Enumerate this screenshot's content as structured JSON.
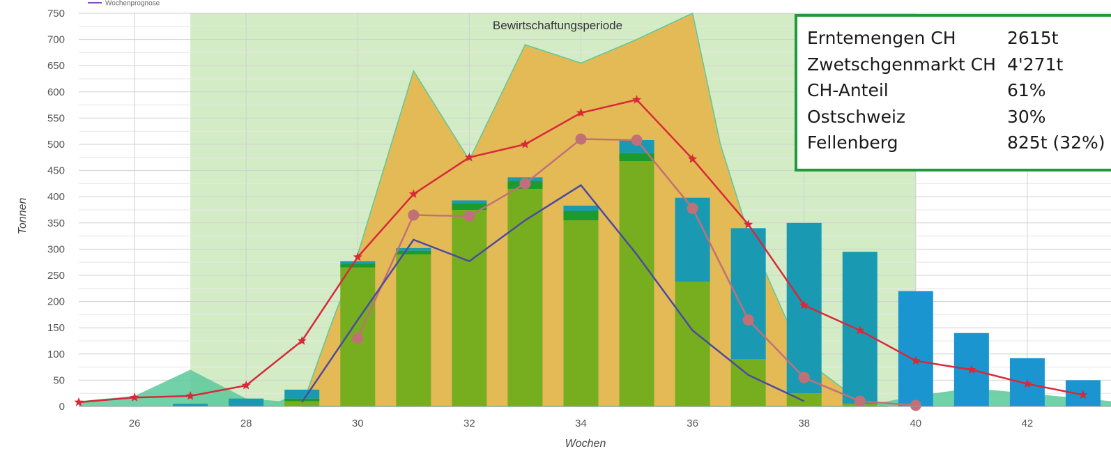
{
  "chart_data": {
    "type": "bar",
    "xlabel": "Wochen",
    "ylabel": "Tonnen",
    "xlim": [
      25,
      43.5
    ],
    "ylim": [
      0,
      750
    ],
    "x_ticks": [
      "26",
      "28",
      "30",
      "32",
      "34",
      "36",
      "38",
      "40",
      "42"
    ],
    "y_ticks": [
      "0",
      "50",
      "100",
      "150",
      "200",
      "250",
      "300",
      "350",
      "400",
      "450",
      "500",
      "550",
      "600",
      "650",
      "700",
      "750"
    ],
    "grid": true,
    "legend_entries": [
      {
        "name": "Wochenprognose",
        "color": "#9040c0"
      }
    ],
    "annotations": [
      {
        "text": "Bewirtschaftungsperiode",
        "x_start": 27,
        "x_end": 40
      }
    ],
    "colors": {
      "period": "#d3ecc6",
      "market_area": "#e3ba55",
      "early_area": "#5bc99a",
      "bar_green": "#77ae1f",
      "bar_dark": "#1d9a2c",
      "bar_teal": "#1a9ab2",
      "bar_blue": "#1a95d0",
      "red_line": "#d8283a",
      "pink_line": "#c27078",
      "navy_line": "#4c4aa0",
      "grid": "#d0d0d0"
    },
    "market_area": {
      "x": [
        29,
        29.5,
        30,
        31,
        32,
        33,
        34,
        35,
        36,
        36.5,
        37,
        38,
        39,
        39.5
      ],
      "y": [
        0,
        150,
        290,
        640,
        470,
        690,
        655,
        700,
        750,
        500,
        330,
        90,
        10,
        0
      ]
    },
    "early_area": {
      "x": [
        25,
        26,
        27,
        28,
        28.6,
        29,
        30,
        39,
        40,
        41,
        42,
        43,
        43.5
      ],
      "y": [
        10,
        20,
        70,
        15,
        10,
        30,
        0,
        0,
        20,
        35,
        25,
        15,
        10
      ]
    },
    "bars": [
      {
        "week": 27,
        "segments": [
          {
            "value": 5,
            "color": "#1a9ab2"
          }
        ]
      },
      {
        "week": 28,
        "segments": [
          {
            "value": 15,
            "color": "#1a9ab2"
          }
        ]
      },
      {
        "week": 29,
        "segments": [
          {
            "value": 10,
            "color": "#77ae1f"
          },
          {
            "value": 5,
            "color": "#1d9a2c"
          },
          {
            "value": 17,
            "color": "#1a9ab2"
          }
        ]
      },
      {
        "week": 30,
        "segments": [
          {
            "value": 265,
            "color": "#77ae1f"
          },
          {
            "value": 7,
            "color": "#1d9a2c"
          },
          {
            "value": 5,
            "color": "#1a9ab2"
          }
        ]
      },
      {
        "week": 31,
        "segments": [
          {
            "value": 290,
            "color": "#77ae1f"
          },
          {
            "value": 7,
            "color": "#1d9a2c"
          },
          {
            "value": 5,
            "color": "#1a9ab2"
          }
        ]
      },
      {
        "week": 32,
        "segments": [
          {
            "value": 375,
            "color": "#77ae1f"
          },
          {
            "value": 12,
            "color": "#1d9a2c"
          },
          {
            "value": 6,
            "color": "#1a9ab2"
          }
        ]
      },
      {
        "week": 33,
        "segments": [
          {
            "value": 415,
            "color": "#77ae1f"
          },
          {
            "value": 15,
            "color": "#1d9a2c"
          },
          {
            "value": 7,
            "color": "#1a9ab2"
          }
        ]
      },
      {
        "week": 34,
        "segments": [
          {
            "value": 355,
            "color": "#77ae1f"
          },
          {
            "value": 18,
            "color": "#1d9a2c"
          },
          {
            "value": 10,
            "color": "#1a9ab2"
          }
        ]
      },
      {
        "week": 35,
        "segments": [
          {
            "value": 468,
            "color": "#77ae1f"
          },
          {
            "value": 15,
            "color": "#1d9a2c"
          },
          {
            "value": 25,
            "color": "#1a9ab2"
          }
        ]
      },
      {
        "week": 36,
        "segments": [
          {
            "value": 238,
            "color": "#77ae1f"
          },
          {
            "value": 160,
            "color": "#1a9ab2"
          }
        ]
      },
      {
        "week": 37,
        "segments": [
          {
            "value": 90,
            "color": "#77ae1f"
          },
          {
            "value": 250,
            "color": "#1a9ab2"
          }
        ]
      },
      {
        "week": 38,
        "segments": [
          {
            "value": 25,
            "color": "#77ae1f"
          },
          {
            "value": 325,
            "color": "#1a9ab2"
          }
        ]
      },
      {
        "week": 39,
        "segments": [
          {
            "value": 5,
            "color": "#77ae1f"
          },
          {
            "value": 290,
            "color": "#1a9ab2"
          }
        ]
      },
      {
        "week": 40,
        "segments": [
          {
            "value": 220,
            "color": "#1a95d0"
          }
        ]
      },
      {
        "week": 41,
        "segments": [
          {
            "value": 140,
            "color": "#1a95d0"
          }
        ]
      },
      {
        "week": 42,
        "segments": [
          {
            "value": 92,
            "color": "#1a95d0"
          }
        ]
      },
      {
        "week": 43,
        "segments": [
          {
            "value": 50,
            "color": "#1a95d0"
          }
        ]
      }
    ],
    "series": [
      {
        "style": "red-star",
        "x": [
          25,
          26,
          27,
          28,
          29,
          30,
          31,
          32,
          33,
          34,
          35,
          36,
          37,
          38,
          39,
          40,
          41,
          42,
          43
        ],
        "y": [
          8,
          17,
          20,
          40,
          125,
          285,
          405,
          475,
          500,
          560,
          585,
          472,
          347,
          193,
          145,
          87,
          70,
          43,
          22
        ]
      },
      {
        "style": "pink-circle",
        "x": [
          30,
          31,
          32,
          33,
          34,
          35,
          36,
          37,
          38,
          39,
          40
        ],
        "y": [
          130,
          365,
          363,
          425,
          510,
          508,
          378,
          165,
          55,
          10,
          2
        ]
      },
      {
        "name": "Wochenprognose",
        "style": "navy-line",
        "x": [
          29,
          30,
          31,
          32,
          33,
          34,
          35,
          36,
          37,
          38
        ],
        "y": [
          8,
          165,
          318,
          277,
          355,
          422,
          290,
          145,
          60,
          10
        ]
      }
    ]
  },
  "info_box": {
    "rows": [
      {
        "label": "Erntemengen CH",
        "value": "2615t"
      },
      {
        "label": "Zwetschgenmarkt CH",
        "value": "4'271t"
      },
      {
        "label": "CH-Anteil",
        "value": "61%"
      },
      {
        "label": "Ostschweiz",
        "value": "30%"
      },
      {
        "label": "Fellenberg",
        "value": "825t (32%)"
      }
    ]
  }
}
